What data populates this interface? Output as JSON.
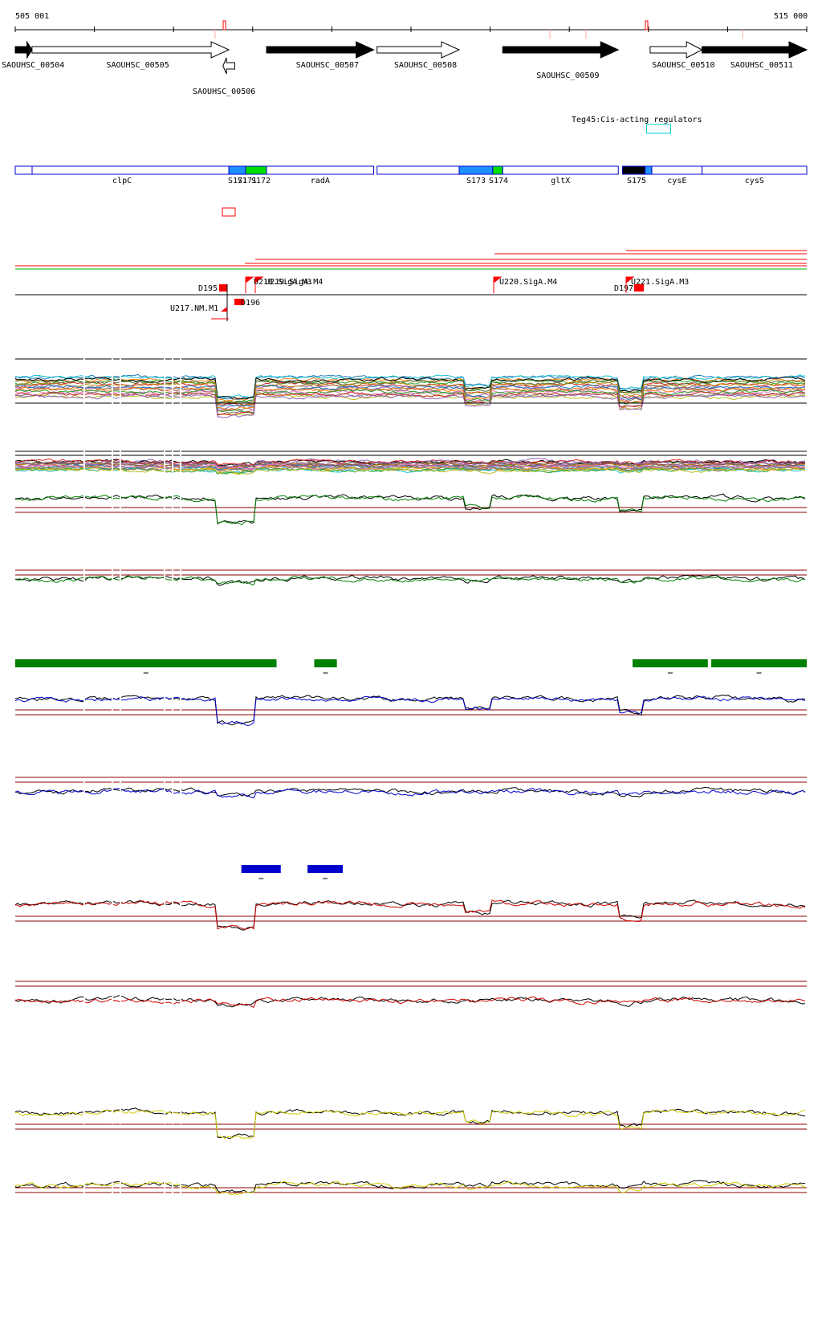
{
  "ruler": {
    "start_label": "505 001",
    "end_label": "515 000"
  },
  "genes": [
    {
      "id": "SAOUHSC_00504",
      "strand": "+",
      "filled": true,
      "from": 0,
      "to": 20
    },
    {
      "id": "SAOUHSC_00505",
      "strand": "+",
      "filled": false,
      "from": 20,
      "to": 255
    },
    {
      "id": "SAOUHSC_00506",
      "strand": "-",
      "filled": false,
      "from": 248,
      "to": 262
    },
    {
      "id": "SAOUHSC_00507",
      "strand": "+",
      "filled": true,
      "from": 300,
      "to": 428
    },
    {
      "id": "SAOUHSC_00508",
      "strand": "+",
      "filled": false,
      "from": 432,
      "to": 530
    },
    {
      "id": "SAOUHSC_00509",
      "strand": "+",
      "filled": true,
      "from": 582,
      "to": 720
    },
    {
      "id": "SAOUHSC_00510",
      "strand": "+",
      "filled": false,
      "from": 758,
      "to": 820
    },
    {
      "id": "SAOUHSC_00511",
      "strand": "+",
      "filled": true,
      "from": 820,
      "to": 945
    }
  ],
  "regulator": {
    "label": "Teg45:Cis-acting regulators",
    "from": 725,
    "to": 755
  },
  "annotation_blocks": [
    {
      "label": "clpC",
      "from": 0,
      "to": 255,
      "fill": "#ffffff"
    },
    {
      "label": "",
      "from": 255,
      "to": 275,
      "fill": "#1e90ff"
    },
    {
      "label": "",
      "from": 275,
      "to": 300,
      "fill": "#00dd00"
    },
    {
      "label": "radA",
      "from": 300,
      "to": 428,
      "fill": "#ffffff"
    },
    {
      "label": "",
      "from": 432,
      "to": 530,
      "fill": "#ffffff"
    },
    {
      "label": "",
      "from": 530,
      "to": 570,
      "fill": "#1e90ff"
    },
    {
      "label": "",
      "from": 570,
      "to": 582,
      "fill": "#00dd00"
    },
    {
      "label": "gltX",
      "from": 582,
      "to": 720,
      "fill": "#ffffff"
    },
    {
      "label": "",
      "from": 725,
      "to": 752,
      "fill": "#000000"
    },
    {
      "label": "",
      "from": 752,
      "to": 760,
      "fill": "#1e90ff"
    },
    {
      "label": "cysE",
      "from": 760,
      "to": 820,
      "fill": "#ffffff"
    },
    {
      "label": "cysS",
      "from": 820,
      "to": 945,
      "fill": "#ffffff"
    }
  ],
  "segment_labels": [
    "S171",
    "S171",
    "S172",
    "S173",
    "S174",
    "S175"
  ],
  "promoters": [
    {
      "label": "D195"
    },
    {
      "label": "D196"
    },
    {
      "label": "U217.NM.M1"
    },
    {
      "label": "U218.SigA.M3"
    },
    {
      "label": "U219.SigA.M4"
    },
    {
      "label": "U220.SigA.M4"
    },
    {
      "label": "D197"
    },
    {
      "label": "U221.SigA.M3"
    }
  ],
  "colors": {
    "gene_fill": "#000000",
    "block_border": "#0000cc",
    "promoter": "#ff0000",
    "regulator_box": "#00cccc",
    "green_track": "#008000",
    "blue_track": "#0000cc",
    "red_track": "#cc0000",
    "yellow_track": "#cccc00",
    "threshold": "#8b0000"
  },
  "region_bars": {
    "green": [
      {
        "from": 0,
        "to": 312
      },
      {
        "from": 357,
        "to": 384
      },
      {
        "from": 737,
        "to": 827
      },
      {
        "from": 831,
        "to": 945
      }
    ],
    "blue": [
      {
        "from": 270,
        "to": 317
      },
      {
        "from": 349,
        "to": 391
      }
    ]
  }
}
